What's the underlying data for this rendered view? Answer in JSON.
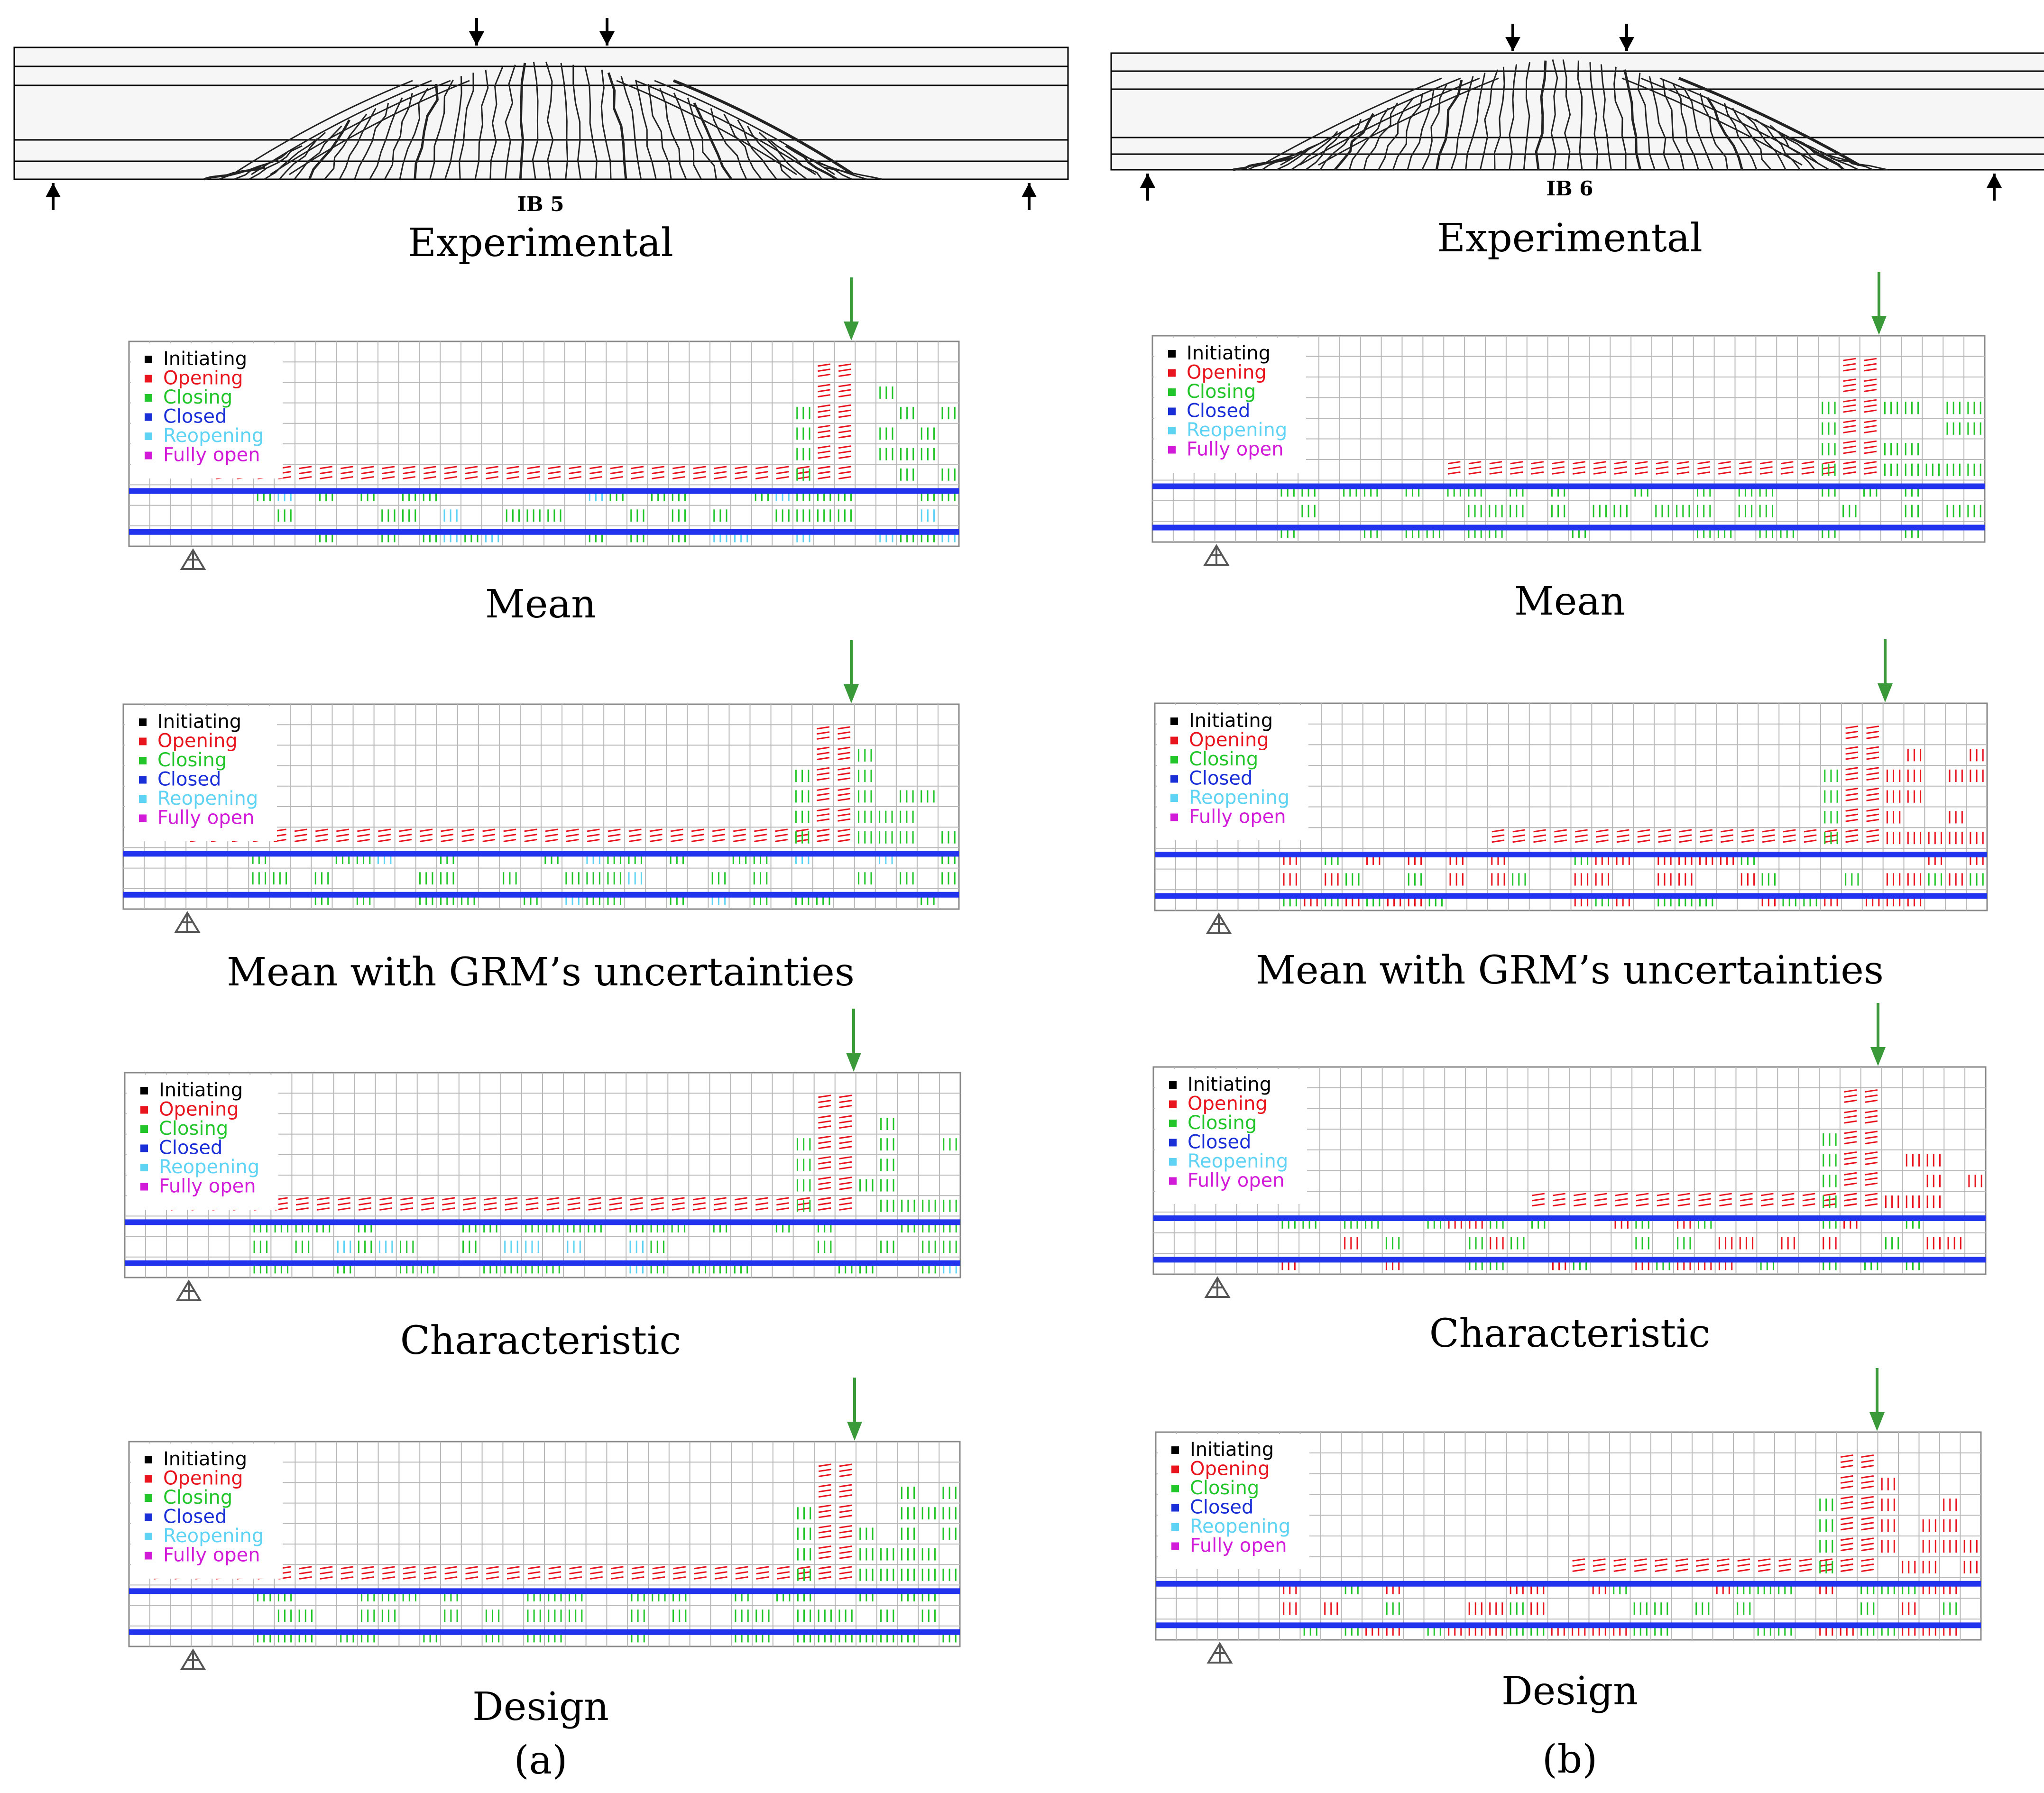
{
  "columns": [
    {
      "id": "a",
      "specimen": "IB 5",
      "experimental_caption": "Experimental",
      "sub_label": "(a)",
      "panels": [
        {
          "caption": "Mean"
        },
        {
          "caption": "Mean with GRM’s uncertainties"
        },
        {
          "caption": "Characteristic"
        },
        {
          "caption": "Design"
        }
      ]
    },
    {
      "id": "b",
      "specimen": "IB 6",
      "experimental_caption": "Experimental",
      "sub_label": "(b)",
      "panels": [
        {
          "caption": "Mean"
        },
        {
          "caption": "Mean with GRM’s uncertainties"
        },
        {
          "caption": "Characteristic"
        },
        {
          "caption": "Design"
        }
      ]
    }
  ],
  "legend": [
    {
      "label": "Initiating",
      "color": "#000000"
    },
    {
      "label": "Opening",
      "color": "#e8141e"
    },
    {
      "label": "Closing",
      "color": "#22c52a"
    },
    {
      "label": "Closed",
      "color": "#1a2fd8"
    },
    {
      "label": "Reopening",
      "color": "#5fd3f3"
    },
    {
      "label": "Fully open",
      "color": "#d21bd8"
    }
  ],
  "colors": {
    "grid": "#b8b8b8",
    "rebar": "#2233ee",
    "load_arrow": "#3a9a3a",
    "crack": "#222222"
  }
}
